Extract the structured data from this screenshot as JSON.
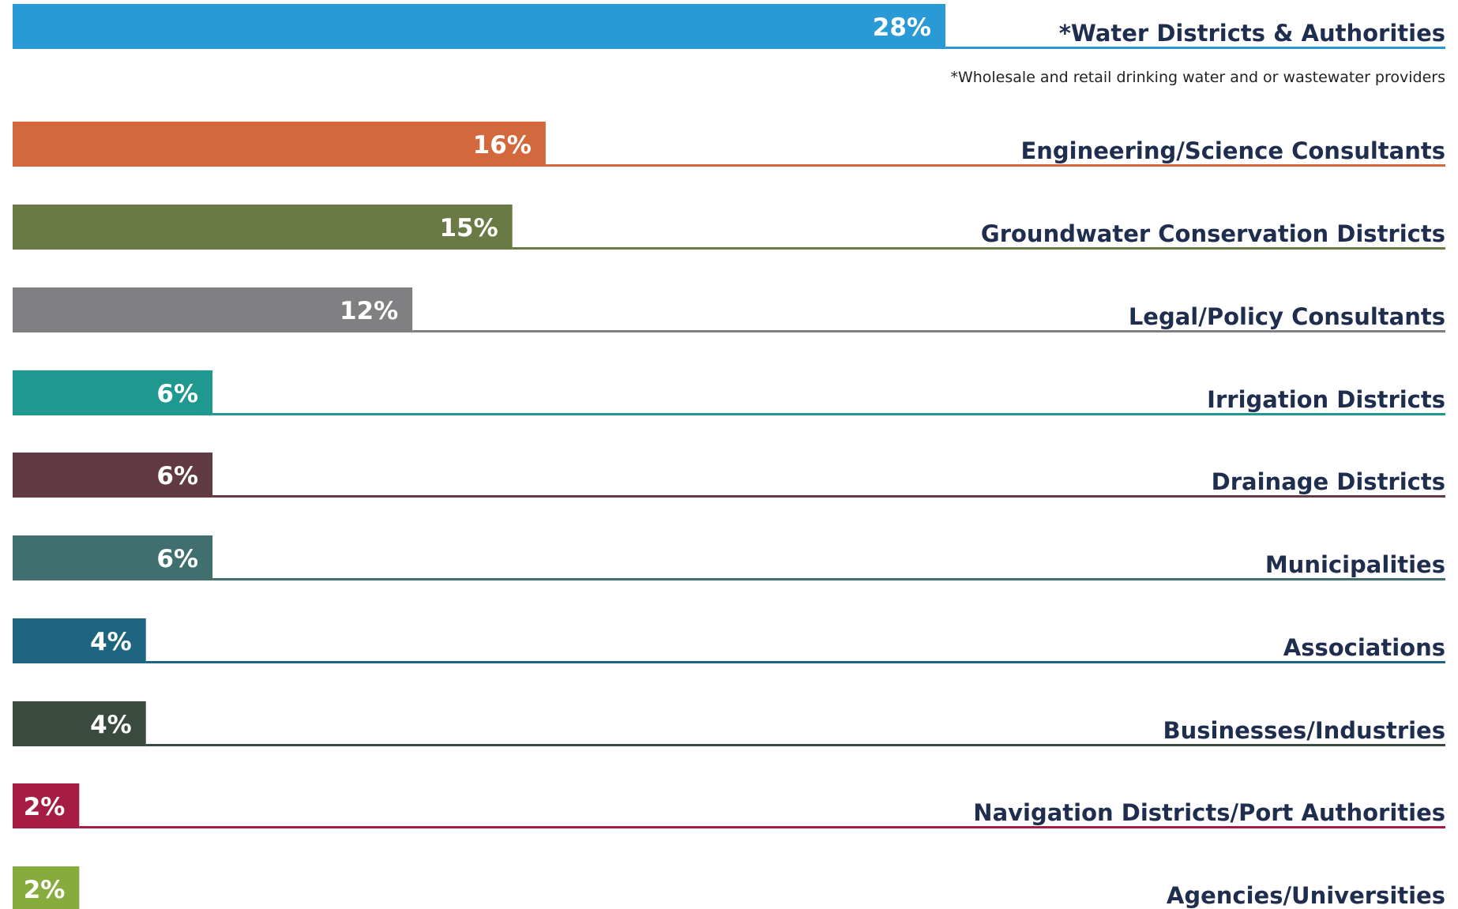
{
  "chart_data": {
    "type": "bar",
    "orientation": "horizontal",
    "categories": [
      "*Water Districts & Authorities",
      "Engineering/Science Consultants",
      "Groundwater Conservation Districts",
      "Legal/Policy Consultants",
      "Irrigation Districts",
      "Drainage Districts",
      "Municipalities",
      "Associations",
      "Businesses/Industries",
      "Navigation Districts/Port Authorities",
      "Agencies/Universities"
    ],
    "values": [
      28,
      16,
      15,
      12,
      6,
      6,
      6,
      4,
      4,
      2,
      2
    ],
    "value_labels": [
      "28%",
      "16%",
      "15%",
      "12%",
      "6%",
      "6%",
      "6%",
      "4%",
      "4%",
      "2%",
      "2%"
    ],
    "colors": [
      "#2a9ad6",
      "#d2683c",
      "#6a7a44",
      "#808083",
      "#1f9890",
      "#613a43",
      "#3f6f6e",
      "#1d6480",
      "#394b3e",
      "#a51c45",
      "#86ac3e"
    ],
    "annotation": "*Wholesale and retail drinking water and or wastewater providers"
  }
}
